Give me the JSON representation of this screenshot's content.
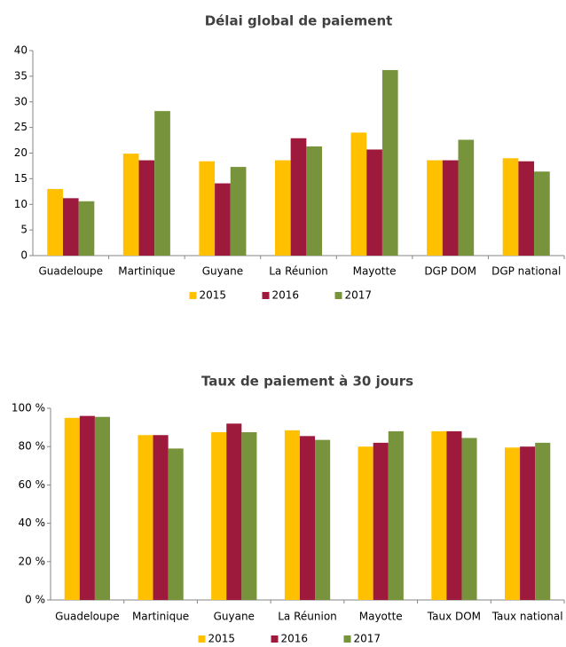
{
  "chart_data": [
    {
      "type": "bar",
      "title": "Délai global de paiement",
      "categories": [
        "Guadeloupe",
        "Martinique",
        "Guyane",
        "La Réunion",
        "Mayotte",
        "DGP DOM",
        "DGP national"
      ],
      "series": [
        {
          "name": "2015",
          "color": "#ffc000",
          "values": [
            13,
            19.9,
            18.4,
            18.6,
            24,
            18.6,
            19
          ]
        },
        {
          "name": "2016",
          "color": "#9e1a3c",
          "values": [
            11.2,
            18.6,
            14.1,
            22.9,
            20.7,
            18.6,
            18.4
          ]
        },
        {
          "name": "2017",
          "color": "#77933c",
          "values": [
            10.6,
            28.2,
            17.3,
            21.3,
            36.2,
            22.6,
            16.4
          ]
        }
      ],
      "ylim": [
        0,
        40
      ],
      "yticks": [
        0,
        5,
        10,
        15,
        20,
        25,
        30,
        35,
        40
      ],
      "grid": false,
      "legend": "bottom"
    },
    {
      "type": "bar",
      "title": "Taux de paiement à 30 jours",
      "categories": [
        "Guadeloupe",
        "Martinique",
        "Guyane",
        "La Réunion",
        "Mayotte",
        "Taux DOM",
        "Taux national"
      ],
      "series": [
        {
          "name": "2015",
          "color": "#ffc000",
          "values": [
            95,
            86,
            87.5,
            88.5,
            80,
            88,
            79.5
          ]
        },
        {
          "name": "2016",
          "color": "#9e1a3c",
          "values": [
            96,
            86,
            92,
            85.5,
            82,
            88,
            80
          ]
        },
        {
          "name": "2017",
          "color": "#77933c",
          "values": [
            95.5,
            79,
            87.5,
            83.5,
            88,
            84.5,
            82
          ]
        }
      ],
      "ylim": [
        0,
        100
      ],
      "yticks": [
        {
          "value": 0,
          "label": "0 %"
        },
        {
          "value": 20,
          "label": "20 %"
        },
        {
          "value": 40,
          "label": "40 %"
        },
        {
          "value": 60,
          "label": "60 %"
        },
        {
          "value": 80,
          "label": "80 %"
        },
        {
          "value": 100,
          "label": "100 %"
        }
      ],
      "grid": false,
      "legend": "bottom"
    }
  ]
}
